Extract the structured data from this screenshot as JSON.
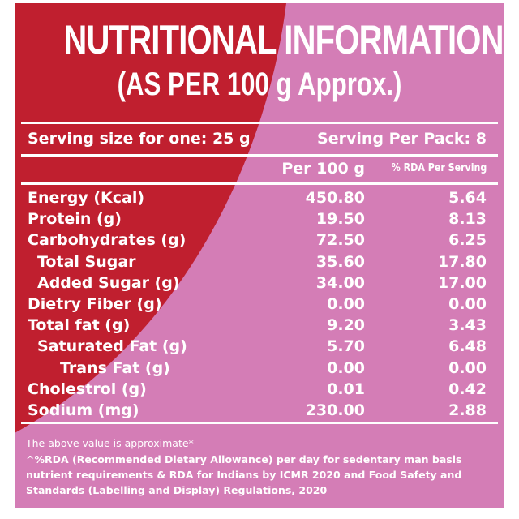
{
  "header": {
    "title": "NUTRITIONAL INFORMATION",
    "subtitle": "(AS PER 100 g Approx.)"
  },
  "serving": {
    "size": "Serving size for one: 25 g",
    "per_pack": "Serving Per Pack: 8"
  },
  "table": {
    "columns": [
      "Per 100 g",
      "% RDA Per Serving"
    ],
    "rows": [
      [
        "Energy (Kcal)",
        "450.80",
        "5.64"
      ],
      [
        "Protein (g)",
        "19.50",
        "8.13"
      ],
      [
        "Carbohydrates (g)",
        "72.50",
        "6.25"
      ],
      [
        "Total Sugar",
        "35.60",
        "17.80"
      ],
      [
        "Added Sugar (g)",
        "34.00",
        "17.00"
      ],
      [
        "Dietry Fiber (g)",
        "0.00",
        "0.00"
      ],
      [
        "Total fat (g)",
        "9.20",
        "3.43"
      ],
      [
        "Saturated Fat (g)",
        "5.70",
        "6.48"
      ],
      [
        "Trans Fat (g)",
        "0.00",
        "0.00"
      ],
      [
        "Cholestrol (g)",
        "0.01",
        "0.42"
      ],
      [
        "Sodium (mg)",
        "230.00",
        "2.88"
      ]
    ]
  },
  "footnotes": [
    "The above value is approximate*",
    "^%RDA (Recommended Dietary Allowance) per day for sedentary man basis nutrient requirements & RDA for Indians by ICMR 2020 and Food Safety and Standards (Labelling and Display) Regulations, 2020"
  ]
}
